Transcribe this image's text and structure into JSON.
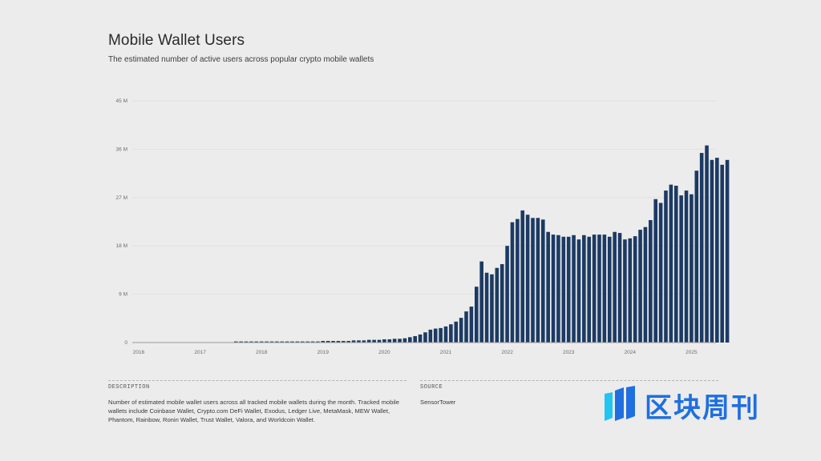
{
  "header": {
    "title": "Mobile Wallet Users",
    "subtitle": "The estimated number of active users across popular crypto mobile wallets"
  },
  "footer": {
    "description_heading": "DESCRIPTION",
    "description_text": "Number of estimated mobile wallet users across all tracked mobile wallets during the month. Tracked mobile wallets include Coinbase Wallet, Crypto.com DeFi Wallet, Exodus, Ledger Live, MetaMask, MEW Wallet, Phantom, Rainbow, Ronin Wallet, Trust Wallet, Valora, and Worldcoin Wallet.",
    "source_heading": "SOURCE",
    "source_text": "SensorTower"
  },
  "watermark": {
    "text": "区块周刊",
    "icon": "bar-logo-icon",
    "color": "#1f6fe0",
    "accent": "#22c4f0"
  },
  "chart_data": {
    "type": "bar",
    "title": "Mobile Wallet Users",
    "subtitle": "The estimated number of active users across popular crypto mobile wallets",
    "xlabel": "",
    "ylabel": "",
    "unit": "users (millions)",
    "bar_color": "#1c3a63",
    "grid": true,
    "legend": "none",
    "ylim": [
      0,
      45
    ],
    "y_ticks": [
      0,
      9,
      18,
      27,
      36,
      45
    ],
    "y_tick_labels": [
      "0",
      "9 M",
      "18 M",
      "27 M",
      "36 M",
      "45 M"
    ],
    "x_range": [
      "2016-01",
      "2025-06"
    ],
    "x_tick_labels": [
      "2016",
      "2017",
      "2018",
      "2019",
      "2020",
      "2021",
      "2022",
      "2023",
      "2024",
      "2025"
    ],
    "start_month": "2017-08",
    "series": [
      {
        "name": "Mobile Wallet Users",
        "values": [
          0.2,
          0.2,
          0.2,
          0.2,
          0.2,
          0.2,
          0.2,
          0.2,
          0.2,
          0.2,
          0.2,
          0.2,
          0.2,
          0.2,
          0.2,
          0.2,
          0.2,
          0.3,
          0.3,
          0.3,
          0.3,
          0.3,
          0.3,
          0.4,
          0.4,
          0.4,
          0.5,
          0.5,
          0.5,
          0.6,
          0.6,
          0.7,
          0.7,
          0.8,
          1.0,
          1.2,
          1.5,
          1.9,
          2.4,
          2.6,
          2.7,
          3.0,
          3.4,
          3.9,
          4.6,
          5.8,
          6.7,
          10.4,
          15.1,
          13.0,
          12.7,
          13.9,
          14.6,
          18.0,
          22.4,
          23.0,
          24.6,
          23.8,
          23.2,
          23.2,
          22.9,
          20.6,
          20.1,
          20.0,
          19.7,
          19.7,
          20.0,
          19.2,
          20.0,
          19.7,
          20.1,
          20.1,
          20.1,
          19.7,
          20.6,
          20.4,
          19.2,
          19.4,
          19.8,
          21.0,
          21.5,
          22.8,
          26.7,
          26.0,
          28.3,
          29.4,
          29.2,
          27.4,
          28.3,
          27.6,
          32.0,
          35.3,
          36.7,
          34.0,
          34.4,
          33.1,
          34.0
        ]
      }
    ]
  }
}
